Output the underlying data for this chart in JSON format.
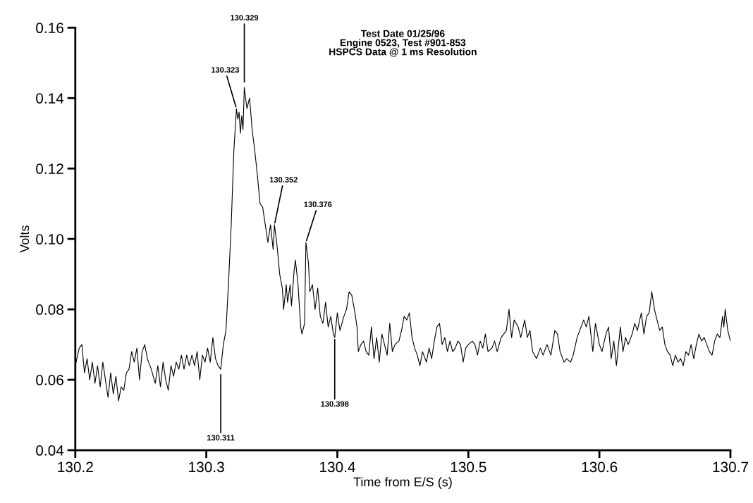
{
  "chart_data": {
    "type": "line",
    "title": "Test Date 01/25/96\nEngine 0523, Test #901-853\nHSPCS Data @ 1 ms Resolution",
    "xlabel": "Time from E/S (s)",
    "ylabel": "Volts",
    "x": [
      130.2,
      130.203,
      130.205,
      130.207,
      130.209,
      130.211,
      130.213,
      130.215,
      130.217,
      130.219,
      130.221,
      130.223,
      130.225,
      130.227,
      130.229,
      130.231,
      130.233,
      130.235,
      130.237,
      130.239,
      130.241,
      130.243,
      130.245,
      130.247,
      130.249,
      130.251,
      130.253,
      130.255,
      130.258,
      130.261,
      130.263,
      130.265,
      130.267,
      130.269,
      130.271,
      130.273,
      130.275,
      130.277,
      130.279,
      130.281,
      130.283,
      130.285,
      130.287,
      130.289,
      130.291,
      130.293,
      130.295,
      130.297,
      130.299,
      130.301,
      130.303,
      130.305,
      130.307,
      130.309,
      130.311,
      130.313,
      130.315,
      130.317,
      130.319,
      130.321,
      130.323,
      130.324,
      130.325,
      130.326,
      130.327,
      130.328,
      130.329,
      130.331,
      130.333,
      130.335,
      130.337,
      130.339,
      130.341,
      130.343,
      130.345,
      130.347,
      130.349,
      130.351,
      130.352,
      130.354,
      130.356,
      130.358,
      130.359,
      130.361,
      130.362,
      130.364,
      130.365,
      130.367,
      130.368,
      130.37,
      130.372,
      130.373,
      130.375,
      130.376,
      130.378,
      130.379,
      130.381,
      130.383,
      130.385,
      130.387,
      130.389,
      130.391,
      130.393,
      130.395,
      130.397,
      130.398,
      130.4,
      130.402,
      130.405,
      130.407,
      130.409,
      130.411,
      130.413,
      130.415,
      130.416,
      130.418,
      130.42,
      130.422,
      130.424,
      130.426,
      130.428,
      130.43,
      130.432,
      130.434,
      130.436,
      130.438,
      130.44,
      130.442,
      130.444,
      130.447,
      130.449,
      130.451,
      130.453,
      130.455,
      130.457,
      130.459,
      130.461,
      130.463,
      130.465,
      130.468,
      130.47,
      130.472,
      130.474,
      130.476,
      130.478,
      130.48,
      130.482,
      130.484,
      130.486,
      130.488,
      130.49,
      130.492,
      130.494,
      130.496,
      130.498,
      130.5,
      130.503,
      130.505,
      130.507,
      130.509,
      130.511,
      130.513,
      130.515,
      130.518,
      130.52,
      130.522,
      130.525,
      130.527,
      130.529,
      130.531,
      130.533,
      130.535,
      130.538,
      130.54,
      130.543,
      130.545,
      130.547,
      130.549,
      130.552,
      130.555,
      130.557,
      130.56,
      130.563,
      130.566,
      130.568,
      130.57,
      130.573,
      130.575,
      130.578,
      130.58,
      130.583,
      130.585,
      130.588,
      130.59,
      130.592,
      130.595,
      130.597,
      130.6,
      130.602,
      130.605,
      130.607,
      130.609,
      130.611,
      130.613,
      130.616,
      130.618,
      130.62,
      130.622,
      130.625,
      130.627,
      130.629,
      130.632,
      130.634,
      130.636,
      130.638,
      130.64,
      130.642,
      130.644,
      130.646,
      130.648,
      130.65,
      130.652,
      130.654,
      130.656,
      130.658,
      130.66,
      130.662,
      130.664,
      130.666,
      130.668,
      130.67,
      130.672,
      130.674,
      130.676,
      130.678,
      130.68,
      130.682,
      130.684,
      130.686,
      130.688,
      130.69,
      130.692,
      130.694,
      130.695,
      130.696,
      130.698,
      130.7
    ],
    "series": [
      {
        "color": "#000000",
        "values": [
          0.064,
          0.069,
          0.07,
          0.062,
          0.066,
          0.06,
          0.065,
          0.059,
          0.064,
          0.058,
          0.065,
          0.06,
          0.055,
          0.062,
          0.056,
          0.061,
          0.054,
          0.058,
          0.057,
          0.062,
          0.063,
          0.068,
          0.065,
          0.069,
          0.06,
          0.068,
          0.07,
          0.066,
          0.063,
          0.059,
          0.064,
          0.058,
          0.065,
          0.06,
          0.057,
          0.064,
          0.061,
          0.065,
          0.063,
          0.067,
          0.063,
          0.067,
          0.064,
          0.067,
          0.064,
          0.068,
          0.06,
          0.067,
          0.065,
          0.069,
          0.065,
          0.072,
          0.066,
          0.064,
          0.063,
          0.07,
          0.074,
          0.088,
          0.104,
          0.125,
          0.137,
          0.134,
          0.136,
          0.13,
          0.135,
          0.131,
          0.143,
          0.137,
          0.14,
          0.131,
          0.125,
          0.118,
          0.11,
          0.109,
          0.104,
          0.099,
          0.104,
          0.097,
          0.104,
          0.098,
          0.09,
          0.086,
          0.08,
          0.087,
          0.082,
          0.087,
          0.081,
          0.091,
          0.094,
          0.087,
          0.075,
          0.073,
          0.076,
          0.099,
          0.093,
          0.085,
          0.087,
          0.08,
          0.086,
          0.078,
          0.076,
          0.082,
          0.075,
          0.078,
          0.073,
          0.072,
          0.079,
          0.074,
          0.078,
          0.08,
          0.085,
          0.084,
          0.08,
          0.075,
          0.068,
          0.07,
          0.071,
          0.068,
          0.067,
          0.075,
          0.066,
          0.072,
          0.065,
          0.073,
          0.07,
          0.067,
          0.076,
          0.068,
          0.07,
          0.071,
          0.074,
          0.078,
          0.077,
          0.079,
          0.072,
          0.069,
          0.067,
          0.064,
          0.068,
          0.065,
          0.069,
          0.066,
          0.071,
          0.075,
          0.076,
          0.07,
          0.072,
          0.068,
          0.071,
          0.068,
          0.069,
          0.071,
          0.07,
          0.065,
          0.069,
          0.07,
          0.071,
          0.07,
          0.067,
          0.071,
          0.069,
          0.073,
          0.068,
          0.069,
          0.071,
          0.068,
          0.072,
          0.073,
          0.074,
          0.08,
          0.072,
          0.077,
          0.075,
          0.072,
          0.077,
          0.072,
          0.074,
          0.068,
          0.066,
          0.069,
          0.067,
          0.07,
          0.067,
          0.074,
          0.073,
          0.068,
          0.065,
          0.066,
          0.065,
          0.067,
          0.072,
          0.074,
          0.077,
          0.075,
          0.078,
          0.068,
          0.076,
          0.07,
          0.068,
          0.073,
          0.075,
          0.066,
          0.071,
          0.064,
          0.075,
          0.068,
          0.072,
          0.07,
          0.073,
          0.076,
          0.074,
          0.079,
          0.073,
          0.078,
          0.079,
          0.085,
          0.08,
          0.077,
          0.074,
          0.075,
          0.07,
          0.068,
          0.067,
          0.064,
          0.067,
          0.065,
          0.066,
          0.064,
          0.068,
          0.067,
          0.07,
          0.066,
          0.07,
          0.073,
          0.071,
          0.072,
          0.07,
          0.068,
          0.067,
          0.071,
          0.073,
          0.072,
          0.078,
          0.075,
          0.08,
          0.074,
          0.071
        ]
      }
    ],
    "xlim": [
      130.2,
      130.7
    ],
    "xticks": [
      130.2,
      130.3,
      130.4,
      130.5,
      130.6,
      130.7
    ],
    "ylim": [
      0.04,
      0.16
    ],
    "yticks": [
      0.04,
      0.06,
      0.08,
      {
        "value": 0.1,
        "label": "0.10"
      },
      0.12,
      0.14,
      0.16
    ],
    "grid": false,
    "marker": "none",
    "line_style": "solid",
    "annotations": [
      {
        "text": "130.311",
        "x": 130.311,
        "y": 0.062
      },
      {
        "text": "130.323",
        "x": 130.323,
        "y": 0.137
      },
      {
        "text": "130.329",
        "x": 130.329,
        "y": 0.144
      },
      {
        "text": "130.352",
        "x": 130.352,
        "y": 0.104
      },
      {
        "text": "130.376",
        "x": 130.376,
        "y": 0.099
      },
      {
        "text": "130.398",
        "x": 130.398,
        "y": 0.072
      }
    ]
  }
}
